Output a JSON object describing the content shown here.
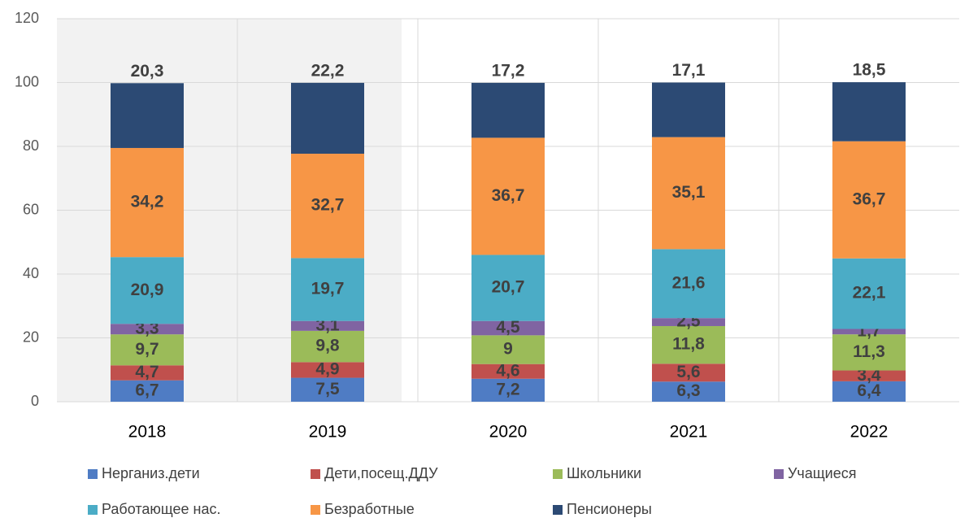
{
  "chart_data": {
    "type": "stacked_bar",
    "categories": [
      "2018",
      "2019",
      "2020",
      "2021",
      "2022"
    ],
    "ylim": [
      0,
      120
    ],
    "yticks": [
      0,
      20,
      40,
      60,
      80,
      100,
      120
    ],
    "grid": true,
    "legend": "bottom",
    "series": [
      {
        "name": "Нерганиз.дети",
        "color": "#4f7cc4",
        "values": [
          6.7,
          7.5,
          7.2,
          6.3,
          6.4
        ],
        "value_labels": [
          "6,7",
          "7,5",
          "7,2",
          "6,3",
          "6,4"
        ]
      },
      {
        "name": "Дети,посещ.ДДУ",
        "color": "#c0504d",
        "values": [
          4.7,
          4.9,
          4.6,
          5.6,
          3.4
        ],
        "value_labels": [
          "4,7",
          "4,9",
          "4,6",
          "5,6",
          "3,4"
        ]
      },
      {
        "name": "Школьники",
        "color": "#9bbb59",
        "values": [
          9.7,
          9.8,
          9,
          11.8,
          11.3
        ],
        "value_labels": [
          "9,7",
          "9,8",
          "9",
          "11,8",
          "11,3"
        ]
      },
      {
        "name": "Учащиеся",
        "color": "#8064a2",
        "values": [
          3.3,
          3.1,
          4.5,
          2.5,
          1.7
        ],
        "value_labels": [
          "3,3",
          "3,1",
          "4,5",
          "2,5",
          "1,7"
        ]
      },
      {
        "name": "Работающее нас.",
        "color": "#4bacc6",
        "values": [
          20.9,
          19.7,
          20.7,
          21.6,
          22.1
        ],
        "value_labels": [
          "20,9",
          "19,7",
          "20,7",
          "21,6",
          "22,1"
        ]
      },
      {
        "name": "Безработные",
        "color": "#f79646",
        "values": [
          34.2,
          32.7,
          36.7,
          35.1,
          36.7
        ],
        "value_labels": [
          "34,2",
          "32,7",
          "36,7",
          "35,1",
          "36,7"
        ]
      },
      {
        "name": "Пенсионеры",
        "color": "#2c4a74",
        "values": [
          20.3,
          22.2,
          17.2,
          17.1,
          18.5
        ],
        "value_labels": [
          "20,3",
          "22,2",
          "17,2",
          "17,1",
          "18,5"
        ]
      }
    ]
  }
}
